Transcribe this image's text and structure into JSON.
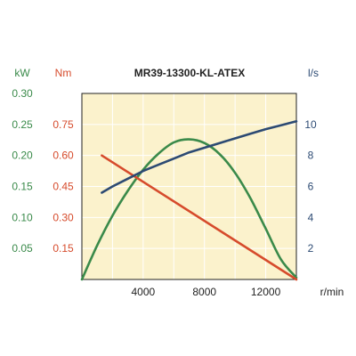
{
  "chart_data": {
    "type": "line",
    "title": "MR39-13300-KL-ATEX",
    "colors": {
      "power": "#3a8a4a",
      "torque": "#d64b2c",
      "flow": "#2c4a73",
      "plot_bg": "#fbf2cc",
      "grid": "#ffffff",
      "frame": "#222222"
    },
    "x_axis": {
      "unit": "r/min",
      "range": [
        0,
        14000
      ],
      "ticks": [
        {
          "value": 4000,
          "label": "4000"
        },
        {
          "value": 8000,
          "label": "8000"
        },
        {
          "value": 12000,
          "label": "12000"
        }
      ]
    },
    "y_axes": {
      "power": {
        "unit": "kW",
        "range": [
          0,
          0.3
        ],
        "ticks": [
          {
            "value": 0.05,
            "label": "0.05"
          },
          {
            "value": 0.1,
            "label": "0.10"
          },
          {
            "value": 0.15,
            "label": "0.15"
          },
          {
            "value": 0.2,
            "label": "0.20"
          },
          {
            "value": 0.25,
            "label": "0.25"
          },
          {
            "value": 0.3,
            "label": "0.30"
          }
        ]
      },
      "torque": {
        "unit": "Nm",
        "range": [
          0,
          0.9
        ],
        "ticks": [
          {
            "value": 0.15,
            "label": "0.15"
          },
          {
            "value": 0.3,
            "label": "0.30"
          },
          {
            "value": 0.45,
            "label": "0.45"
          },
          {
            "value": 0.6,
            "label": "0.60"
          },
          {
            "value": 0.75,
            "label": "0.75"
          }
        ]
      },
      "flow": {
        "unit": "l/s",
        "range": [
          0,
          12
        ],
        "ticks": [
          {
            "value": 2,
            "label": "2"
          },
          {
            "value": 4,
            "label": "4"
          },
          {
            "value": 6,
            "label": "6"
          },
          {
            "value": 8,
            "label": "8"
          },
          {
            "value": 10,
            "label": "10"
          }
        ]
      }
    },
    "series": [
      {
        "key": "power",
        "axis": "power",
        "points": [
          [
            0,
            0
          ],
          [
            1000,
            0.055
          ],
          [
            2000,
            0.103
          ],
          [
            3000,
            0.143
          ],
          [
            4000,
            0.177
          ],
          [
            5000,
            0.203
          ],
          [
            6000,
            0.221
          ],
          [
            7000,
            0.226
          ],
          [
            8000,
            0.22
          ],
          [
            9000,
            0.202
          ],
          [
            10000,
            0.172
          ],
          [
            11000,
            0.131
          ],
          [
            12000,
            0.082
          ],
          [
            13000,
            0.032
          ],
          [
            14000,
            0.003
          ]
        ]
      },
      {
        "key": "torque",
        "axis": "torque",
        "points": [
          [
            1300,
            0.6
          ],
          [
            14000,
            0.0
          ]
        ]
      },
      {
        "key": "flow",
        "axis": "flow",
        "points": [
          [
            1300,
            5.6
          ],
          [
            2000,
            6.0
          ],
          [
            3000,
            6.5
          ],
          [
            4000,
            7.0
          ],
          [
            5000,
            7.4
          ],
          [
            6000,
            7.8
          ],
          [
            7000,
            8.2
          ],
          [
            8000,
            8.5
          ],
          [
            9000,
            8.8
          ],
          [
            10000,
            9.1
          ],
          [
            11000,
            9.4
          ],
          [
            12000,
            9.7
          ],
          [
            13000,
            9.95
          ],
          [
            14000,
            10.2
          ]
        ]
      }
    ],
    "grid": true
  }
}
